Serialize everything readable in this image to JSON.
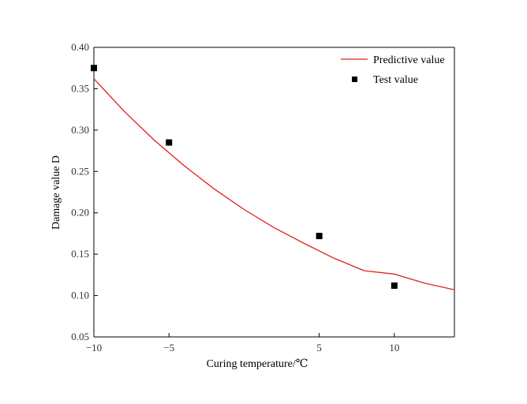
{
  "chart_data": {
    "type": "line",
    "title": "",
    "xlabel": "Curing temperature/℃",
    "ylabel": "Damage value D",
    "xlim": [
      -10,
      14
    ],
    "ylim": [
      0.05,
      0.4
    ],
    "x_tick_values": [
      -10,
      -5,
      5,
      10
    ],
    "x_tick_labels": [
      "−10",
      "−5",
      "5",
      "10"
    ],
    "y_tick_values": [
      0.05,
      0.1,
      0.15,
      0.2,
      0.25,
      0.3,
      0.35,
      0.4
    ],
    "y_tick_labels": [
      "0.05",
      "0.10",
      "0.15",
      "0.20",
      "0.25",
      "0.30",
      "0.35",
      "0.40"
    ],
    "grid": false,
    "legend_position": "top-right",
    "series": [
      {
        "name": "Predictive value",
        "kind": "line",
        "color": "#e0201b",
        "x": [
          -10,
          -8,
          -6,
          -4,
          -2,
          0,
          2,
          4,
          6,
          8,
          10,
          12,
          14
        ],
        "y": [
          0.362,
          0.323,
          0.288,
          0.257,
          0.229,
          0.204,
          0.182,
          0.163,
          0.145,
          0.13,
          0.126,
          0.115,
          0.107
        ]
      },
      {
        "name": "Test value",
        "kind": "scatter",
        "color": "#000000",
        "x": [
          -10,
          -5,
          5,
          10
        ],
        "y": [
          0.375,
          0.285,
          0.172,
          0.112
        ]
      }
    ]
  }
}
